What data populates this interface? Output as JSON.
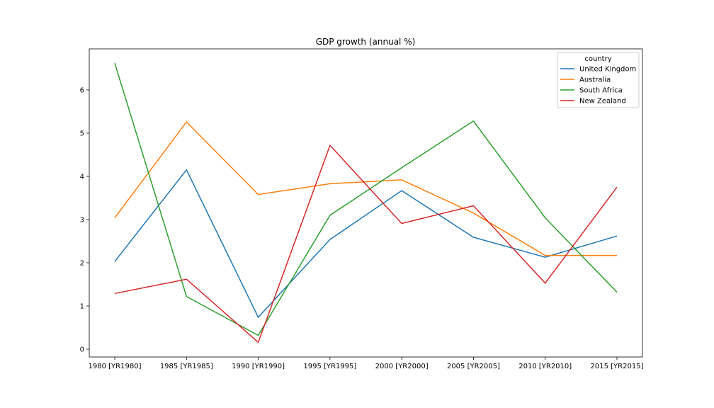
{
  "chart_data": {
    "type": "line",
    "title": "GDP growth (annual %)",
    "xlabel": "",
    "ylabel": "",
    "categories": [
      "1980 [YR1980]",
      "1985 [YR1985]",
      "1990 [YR1990]",
      "1995 [YR1995]",
      "2000 [YR2000]",
      "2005 [YR2005]",
      "2010 [YR2010]",
      "2015 [YR2015]"
    ],
    "yticks": [
      0,
      1,
      2,
      3,
      4,
      5,
      6
    ],
    "ylim": [
      -0.18,
      6.95
    ],
    "grid": false,
    "legend": {
      "title": "country",
      "placement": "upper right"
    },
    "series": [
      {
        "name": "United Kingdom",
        "color": "#1f77b4",
        "values": [
          2.03,
          4.15,
          0.74,
          2.54,
          3.67,
          2.59,
          2.13,
          2.62
        ]
      },
      {
        "name": "Australia",
        "color": "#ff7f0e",
        "values": [
          3.04,
          5.26,
          3.58,
          3.83,
          3.92,
          3.15,
          2.17,
          2.17
        ]
      },
      {
        "name": "South Africa",
        "color": "#2ca02c",
        "values": [
          6.62,
          1.22,
          0.32,
          3.1,
          4.2,
          5.28,
          3.04,
          1.32
        ]
      },
      {
        "name": "New Zealand",
        "color": "#d62728",
        "values": [
          1.29,
          1.62,
          0.16,
          4.72,
          2.91,
          3.32,
          1.53,
          3.75
        ]
      }
    ]
  }
}
